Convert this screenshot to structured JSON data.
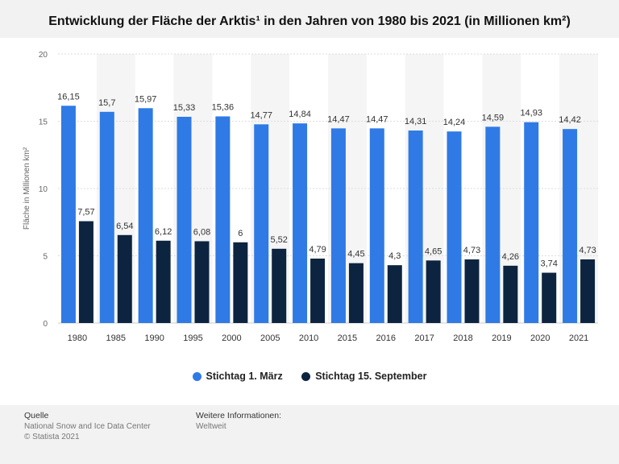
{
  "title": "Entwicklung der Fläche der Arktis¹ in den Jahren von 1980 bis 2021 (in Millionen km²)",
  "footer": {
    "source_heading": "Quelle",
    "source_lines": [
      "National Snow and Ice Data Center",
      "© Statista 2021"
    ],
    "info_heading": "Weitere Informationen:",
    "info_lines": [
      "Weltweit"
    ]
  },
  "colors": {
    "series1": "#2f7ae5",
    "series2": "#0d2440",
    "stripe": "#f5f5f5"
  },
  "chart_data": {
    "type": "bar",
    "title": "Entwicklung der Fläche der Arktis¹ in den Jahren von 1980 bis 2021 (in Millionen km²)",
    "ylabel": "Fläche in Millionen km²",
    "xlabel": "",
    "ylim": [
      0,
      20
    ],
    "yticks": [
      0,
      5,
      10,
      15,
      20
    ],
    "grid": true,
    "legend_position": "bottom",
    "categories": [
      "1980",
      "1985",
      "1990",
      "1995",
      "2000",
      "2005",
      "2010",
      "2015",
      "2016",
      "2017",
      "2018",
      "2019",
      "2020",
      "2021"
    ],
    "series": [
      {
        "name": "Stichtag 1. März",
        "values": [
          16.15,
          15.7,
          15.97,
          15.33,
          15.36,
          14.77,
          14.84,
          14.47,
          14.47,
          14.31,
          14.24,
          14.59,
          14.93,
          14.42
        ],
        "labels": [
          "16,15",
          "15,7",
          "15,97",
          "15,33",
          "15,36",
          "14,77",
          "14,84",
          "14,47",
          "14,47",
          "14,31",
          "14,24",
          "14,59",
          "14,93",
          "14,42"
        ]
      },
      {
        "name": "Stichtag 15. September",
        "values": [
          7.57,
          6.54,
          6.12,
          6.08,
          6,
          5.52,
          4.79,
          4.45,
          4.3,
          4.65,
          4.73,
          4.26,
          3.74,
          4.73
        ],
        "labels": [
          "7,57",
          "6,54",
          "6,12",
          "6,08",
          "6",
          "5,52",
          "4,79",
          "4,45",
          "4,3",
          "4,65",
          "4,73",
          "4,26",
          "3,74",
          "4,73"
        ]
      }
    ]
  }
}
